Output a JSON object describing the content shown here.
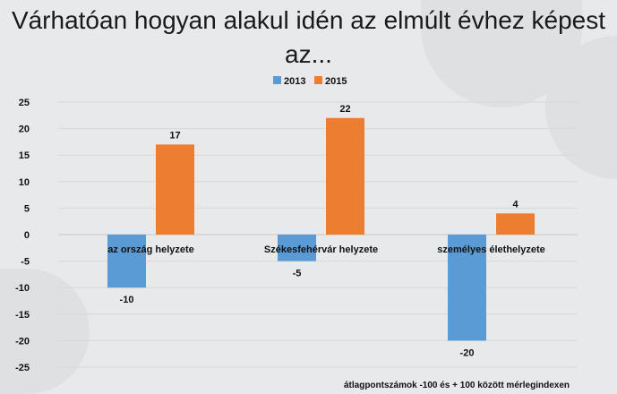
{
  "chart_data": {
    "type": "bar",
    "title": "Várhatóan hogyan alakul idén az elmúlt évhez képest az...",
    "categories": [
      "az ország helyzete",
      "Székesfehérvár helyzete",
      "személyes élethelyzete"
    ],
    "series": [
      {
        "name": "2013",
        "values": [
          -10,
          -5,
          -20
        ],
        "color": "#5b9bd5"
      },
      {
        "name": "2015",
        "values": [
          17,
          22,
          4
        ],
        "color": "#ed7d31"
      }
    ],
    "ylim": [
      -25,
      25
    ],
    "yticks": [
      25,
      20,
      15,
      10,
      5,
      0,
      -5,
      -10,
      -15,
      -20,
      -25
    ],
    "grid": true,
    "legend": "top-center",
    "annotation": "átlagpontszámok -100 és + 100 között mérlegindexen",
    "xlabel": "",
    "ylabel": ""
  }
}
